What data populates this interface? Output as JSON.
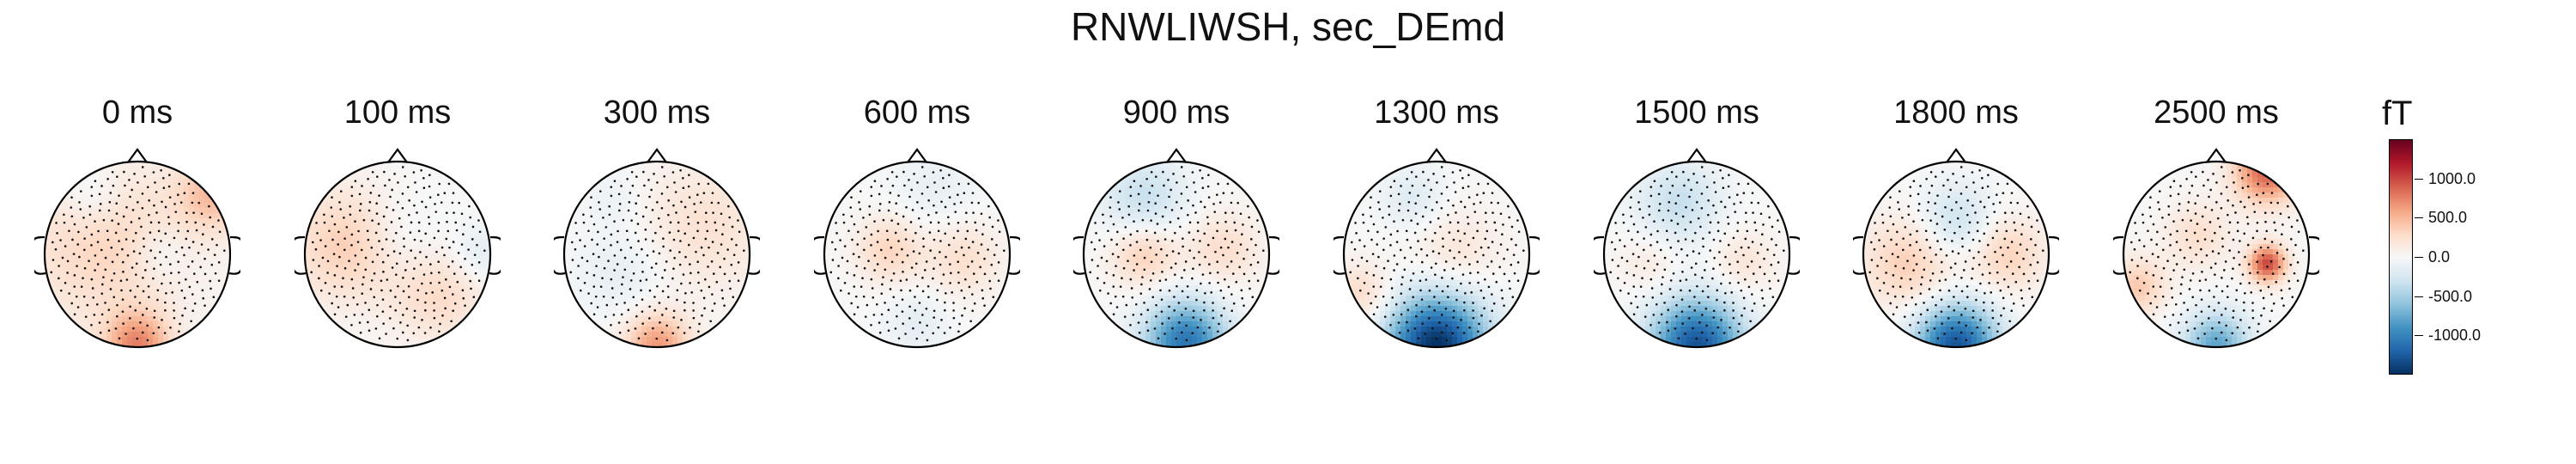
{
  "title": "RNWLIWSH, sec_DEmd",
  "chart_data": {
    "type": "heatmap",
    "title": "RNWLIWSH, sec_DEmd",
    "panels": [
      {
        "label": "0 ms",
        "blobs": [
          {
            "cx": 0.0,
            "cy": -0.98,
            "r": 0.35,
            "v": 700
          },
          {
            "cx": 0.82,
            "cy": 0.65,
            "r": 0.4,
            "v": 450
          },
          {
            "cx": -0.35,
            "cy": 0.1,
            "r": 0.9,
            "v": 330
          },
          {
            "cx": -0.5,
            "cy": 0.65,
            "r": 0.35,
            "v": -200
          },
          {
            "cx": 0.25,
            "cy": 0.0,
            "r": 0.3,
            "v": -150
          }
        ]
      },
      {
        "label": "100 ms",
        "blobs": [
          {
            "cx": -0.55,
            "cy": 0.1,
            "r": 0.6,
            "v": 380
          },
          {
            "cx": 0.45,
            "cy": -0.45,
            "r": 0.5,
            "v": 280
          },
          {
            "cx": 0.0,
            "cy": 0.2,
            "r": 0.45,
            "v": -120
          },
          {
            "cx": 0.9,
            "cy": 0.0,
            "r": 0.3,
            "v": -180
          }
        ]
      },
      {
        "label": "300 ms",
        "blobs": [
          {
            "cx": 0.0,
            "cy": -0.98,
            "r": 0.35,
            "v": 650
          },
          {
            "cx": 0.5,
            "cy": 0.3,
            "r": 0.7,
            "v": 230
          },
          {
            "cx": -0.35,
            "cy": -0.2,
            "r": 0.5,
            "v": -150
          },
          {
            "cx": -0.45,
            "cy": 0.6,
            "r": 0.3,
            "v": -100
          }
        ]
      },
      {
        "label": "600 ms",
        "blobs": [
          {
            "cx": -0.3,
            "cy": 0.05,
            "r": 0.35,
            "v": 330
          },
          {
            "cx": 0.5,
            "cy": -0.05,
            "r": 0.4,
            "v": 250
          },
          {
            "cx": 0.2,
            "cy": 0.7,
            "r": 0.45,
            "v": -120
          },
          {
            "cx": 0.0,
            "cy": -0.75,
            "r": 0.35,
            "v": -150
          }
        ]
      },
      {
        "label": "900 ms",
        "blobs": [
          {
            "cx": 0.1,
            "cy": -0.95,
            "r": 0.45,
            "v": -1100
          },
          {
            "cx": -0.35,
            "cy": 0.6,
            "r": 0.45,
            "v": -350
          },
          {
            "cx": -0.35,
            "cy": 0.0,
            "r": 0.35,
            "v": 380
          },
          {
            "cx": 0.5,
            "cy": 0.05,
            "r": 0.4,
            "v": 260
          }
        ]
      },
      {
        "label": "1300 ms",
        "blobs": [
          {
            "cx": 0.0,
            "cy": -0.98,
            "r": 0.55,
            "v": -1500
          },
          {
            "cx": -0.8,
            "cy": -0.45,
            "r": 0.35,
            "v": 300
          },
          {
            "cx": -0.25,
            "cy": 0.6,
            "r": 0.35,
            "v": -200
          },
          {
            "cx": 0.2,
            "cy": 0.0,
            "r": 0.5,
            "v": 200
          }
        ]
      },
      {
        "label": "1500 ms",
        "blobs": [
          {
            "cx": 0.0,
            "cy": -0.98,
            "r": 0.5,
            "v": -1300
          },
          {
            "cx": -0.2,
            "cy": 0.55,
            "r": 0.45,
            "v": -350
          },
          {
            "cx": 0.5,
            "cy": -0.1,
            "r": 0.35,
            "v": 200
          },
          {
            "cx": -0.5,
            "cy": -0.1,
            "r": 0.35,
            "v": 150
          }
        ]
      },
      {
        "label": "1800 ms",
        "blobs": [
          {
            "cx": 0.0,
            "cy": -0.98,
            "r": 0.45,
            "v": -1300
          },
          {
            "cx": 0.0,
            "cy": 0.35,
            "r": 0.4,
            "v": -350
          },
          {
            "cx": -0.5,
            "cy": -0.1,
            "r": 0.5,
            "v": 380
          },
          {
            "cx": 0.55,
            "cy": 0.0,
            "r": 0.4,
            "v": 350
          }
        ]
      },
      {
        "label": "2500 ms",
        "blobs": [
          {
            "cx": 0.55,
            "cy": 0.9,
            "r": 0.35,
            "v": 900
          },
          {
            "cx": 0.55,
            "cy": -0.1,
            "r": 0.2,
            "v": 1000
          },
          {
            "cx": -0.85,
            "cy": -0.35,
            "r": 0.3,
            "v": 400
          },
          {
            "cx": 0.0,
            "cy": -0.98,
            "r": 0.35,
            "v": -800
          },
          {
            "cx": -0.2,
            "cy": 0.2,
            "r": 0.35,
            "v": 250
          }
        ]
      }
    ],
    "colorbar": {
      "unit": "fT",
      "range": [
        -1500,
        1500
      ],
      "ticks": [
        1000.0,
        500.0,
        0.0,
        -500.0,
        -1000.0
      ],
      "tick_labels": [
        "1000.0",
        "500.0",
        "0.0",
        "-500.0",
        "-1000.0"
      ],
      "colormap": "RdBu_r",
      "colors": [
        "#053061",
        "#2166ac",
        "#4393c3",
        "#92c5de",
        "#d1e5f0",
        "#f7f7f7",
        "#fddbc7",
        "#f4a582",
        "#d6604d",
        "#b2182b",
        "#67001f"
      ]
    }
  }
}
